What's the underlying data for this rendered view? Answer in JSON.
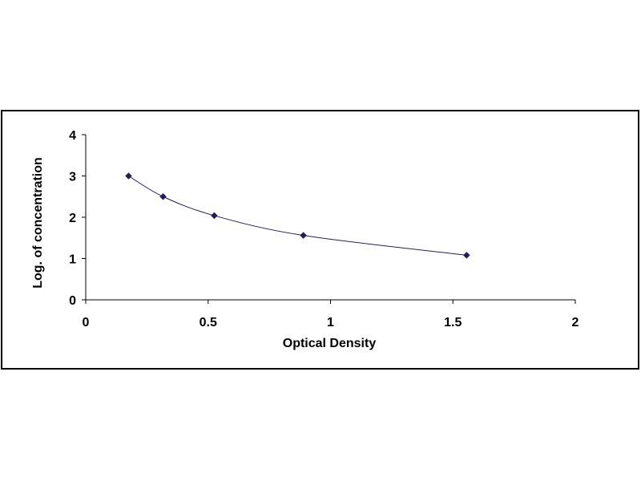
{
  "chart_data": {
    "type": "scatter",
    "title": "",
    "xlabel": "Optical Density",
    "ylabel": "Log. of concentration",
    "xlim": [
      0,
      2
    ],
    "ylim": [
      0,
      4
    ],
    "x_ticks": [
      "0",
      "0.5",
      "1",
      "1.5",
      "2"
    ],
    "y_ticks": [
      "0",
      "1",
      "2",
      "3",
      "4"
    ],
    "grid": false,
    "legend": "none",
    "series": [
      {
        "x": [
          0.175,
          0.316,
          0.525,
          0.889,
          1.556
        ],
        "y": [
          3.0,
          2.5,
          2.04,
          1.56,
          1.08
        ]
      }
    ],
    "trendline": "smooth fitted curve through points",
    "colors": {
      "marker": "#1f1f5f",
      "line": "#1f1f5f",
      "axis": "#000000"
    }
  }
}
